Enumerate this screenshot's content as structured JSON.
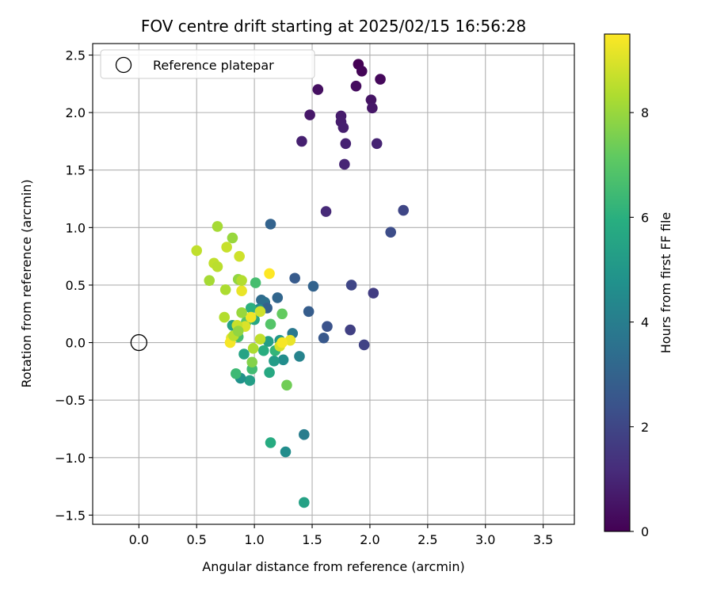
{
  "chart_data": {
    "type": "scatter",
    "title": "FOV centre drift starting at 2025/02/15 16:56:28",
    "xlabel": "Angular distance from reference (arcmin)",
    "ylabel": "Rotation from reference (arcmin)",
    "xlim": [
      -0.4,
      3.77
    ],
    "ylim": [
      -1.58,
      2.6
    ],
    "xticks": [
      0.0,
      0.5,
      1.0,
      1.5,
      2.0,
      2.5,
      3.0,
      3.5
    ],
    "xtick_labels": [
      "0.0",
      "0.5",
      "1.0",
      "1.5",
      "2.0",
      "2.5",
      "3.0",
      "3.5"
    ],
    "yticks": [
      -1.5,
      -1.0,
      -0.5,
      0.0,
      0.5,
      1.0,
      1.5,
      2.0,
      2.5
    ],
    "ytick_labels": [
      "−1.5",
      "−1.0",
      "−0.5",
      "0.0",
      "0.5",
      "1.0",
      "1.5",
      "2.0",
      "2.5"
    ],
    "grid": true,
    "legend": {
      "placement": "top-left",
      "entries": [
        "Reference platepar"
      ]
    },
    "reference_point": {
      "x": 0.0,
      "y": 0.0
    },
    "colorbar": {
      "label": "Hours from first FF file",
      "colormap": "viridis",
      "range": [
        0,
        9.5
      ],
      "ticks": [
        0,
        2,
        4,
        6,
        8
      ],
      "tick_labels": [
        "0",
        "2",
        "4",
        "6",
        "8"
      ]
    },
    "points": [
      {
        "x": 1.9,
        "y": 2.42,
        "c": 0.0
      },
      {
        "x": 1.93,
        "y": 2.36,
        "c": 0.1
      },
      {
        "x": 2.09,
        "y": 2.29,
        "c": 0.2
      },
      {
        "x": 1.88,
        "y": 2.23,
        "c": 0.3
      },
      {
        "x": 1.55,
        "y": 2.2,
        "c": 0.4
      },
      {
        "x": 2.01,
        "y": 2.11,
        "c": 0.5
      },
      {
        "x": 2.02,
        "y": 2.04,
        "c": 0.6
      },
      {
        "x": 1.48,
        "y": 1.98,
        "c": 0.6
      },
      {
        "x": 1.75,
        "y": 1.97,
        "c": 0.7
      },
      {
        "x": 1.75,
        "y": 1.92,
        "c": 0.75
      },
      {
        "x": 1.77,
        "y": 1.87,
        "c": 0.8
      },
      {
        "x": 1.41,
        "y": 1.75,
        "c": 0.85
      },
      {
        "x": 1.79,
        "y": 1.73,
        "c": 0.9
      },
      {
        "x": 2.06,
        "y": 1.73,
        "c": 0.95
      },
      {
        "x": 1.78,
        "y": 1.55,
        "c": 1.0
      },
      {
        "x": 1.62,
        "y": 1.14,
        "c": 1.1
      },
      {
        "x": 2.29,
        "y": 1.15,
        "c": 2.0
      },
      {
        "x": 2.18,
        "y": 0.96,
        "c": 2.2
      },
      {
        "x": 2.03,
        "y": 0.43,
        "c": 1.7
      },
      {
        "x": 1.84,
        "y": 0.5,
        "c": 2.0
      },
      {
        "x": 1.95,
        "y": -0.02,
        "c": 1.9
      },
      {
        "x": 1.83,
        "y": 0.11,
        "c": 1.8
      },
      {
        "x": 1.63,
        "y": 0.14,
        "c": 2.4
      },
      {
        "x": 1.6,
        "y": 0.04,
        "c": 2.6
      },
      {
        "x": 1.47,
        "y": 0.27,
        "c": 2.8
      },
      {
        "x": 1.51,
        "y": 0.49,
        "c": 3.0
      },
      {
        "x": 1.35,
        "y": 0.56,
        "c": 2.7
      },
      {
        "x": 1.14,
        "y": 1.03,
        "c": 3.0
      },
      {
        "x": 1.2,
        "y": 0.39,
        "c": 3.1
      },
      {
        "x": 1.06,
        "y": 0.37,
        "c": 3.3
      },
      {
        "x": 1.09,
        "y": 0.35,
        "c": 3.5
      },
      {
        "x": 1.11,
        "y": 0.3,
        "c": 2.9
      },
      {
        "x": 1.43,
        "y": -0.8,
        "c": 4.0
      },
      {
        "x": 1.27,
        "y": -0.95,
        "c": 4.6
      },
      {
        "x": 1.14,
        "y": -0.87,
        "c": 5.8
      },
      {
        "x": 1.43,
        "y": -1.39,
        "c": 5.4
      },
      {
        "x": 1.39,
        "y": -0.12,
        "c": 4.2
      },
      {
        "x": 1.33,
        "y": 0.08,
        "c": 3.8
      },
      {
        "x": 1.25,
        "y": -0.15,
        "c": 4.6
      },
      {
        "x": 1.22,
        "y": 0.02,
        "c": 5.0
      },
      {
        "x": 1.17,
        "y": -0.16,
        "c": 5.2
      },
      {
        "x": 1.12,
        "y": 0.01,
        "c": 5.3
      },
      {
        "x": 1.08,
        "y": -0.07,
        "c": 5.9
      },
      {
        "x": 1.13,
        "y": -0.26,
        "c": 5.7
      },
      {
        "x": 1.18,
        "y": -0.07,
        "c": 6.2
      },
      {
        "x": 1.28,
        "y": -0.37,
        "c": 7.4
      },
      {
        "x": 1.04,
        "y": 0.29,
        "c": 4.5
      },
      {
        "x": 0.97,
        "y": 0.3,
        "c": 6.0
      },
      {
        "x": 1.01,
        "y": 0.52,
        "c": 6.6
      },
      {
        "x": 1.14,
        "y": 0.16,
        "c": 6.9
      },
      {
        "x": 1.24,
        "y": 0.25,
        "c": 7.2
      },
      {
        "x": 1.0,
        "y": 0.2,
        "c": 5.6
      },
      {
        "x": 0.96,
        "y": -0.33,
        "c": 5.3
      },
      {
        "x": 0.88,
        "y": -0.31,
        "c": 4.8
      },
      {
        "x": 0.84,
        "y": -0.27,
        "c": 6.4
      },
      {
        "x": 0.91,
        "y": -0.1,
        "c": 5.5
      },
      {
        "x": 0.98,
        "y": -0.23,
        "c": 6.5
      },
      {
        "x": 0.98,
        "y": -0.17,
        "c": 7.7
      },
      {
        "x": 0.81,
        "y": 0.15,
        "c": 5.4
      },
      {
        "x": 0.86,
        "y": 0.05,
        "c": 6.6
      },
      {
        "x": 0.93,
        "y": 0.18,
        "c": 6.9
      },
      {
        "x": 0.99,
        "y": -0.05,
        "c": 8.3
      },
      {
        "x": 1.05,
        "y": 0.03,
        "c": 8.6
      },
      {
        "x": 1.22,
        "y": -0.03,
        "c": 8.9
      },
      {
        "x": 1.31,
        "y": 0.02,
        "c": 9.2
      },
      {
        "x": 1.24,
        "y": 0.0,
        "c": 9.4
      },
      {
        "x": 1.05,
        "y": 0.27,
        "c": 8.8
      },
      {
        "x": 0.97,
        "y": 0.22,
        "c": 9.3
      },
      {
        "x": 0.92,
        "y": 0.14,
        "c": 9.0
      },
      {
        "x": 0.85,
        "y": 0.15,
        "c": 8.7
      },
      {
        "x": 0.8,
        "y": 0.04,
        "c": 9.1
      },
      {
        "x": 0.79,
        "y": 0.0,
        "c": 9.4
      },
      {
        "x": 0.82,
        "y": 0.06,
        "c": 8.5
      },
      {
        "x": 0.89,
        "y": 0.26,
        "c": 8.0
      },
      {
        "x": 0.74,
        "y": 0.22,
        "c": 8.4
      },
      {
        "x": 0.86,
        "y": 0.1,
        "c": 7.9
      },
      {
        "x": 0.89,
        "y": 0.45,
        "c": 9.2
      },
      {
        "x": 0.75,
        "y": 0.46,
        "c": 8.3
      },
      {
        "x": 0.86,
        "y": 0.55,
        "c": 7.9
      },
      {
        "x": 0.89,
        "y": 0.54,
        "c": 8.4
      },
      {
        "x": 1.13,
        "y": 0.6,
        "c": 9.5
      },
      {
        "x": 0.61,
        "y": 0.54,
        "c": 8.2
      },
      {
        "x": 0.65,
        "y": 0.69,
        "c": 8.6
      },
      {
        "x": 0.68,
        "y": 0.66,
        "c": 8.5
      },
      {
        "x": 0.5,
        "y": 0.8,
        "c": 8.6
      },
      {
        "x": 0.76,
        "y": 0.83,
        "c": 8.7
      },
      {
        "x": 0.87,
        "y": 0.75,
        "c": 8.8
      },
      {
        "x": 0.81,
        "y": 0.91,
        "c": 8.0
      },
      {
        "x": 0.68,
        "y": 1.01,
        "c": 8.2
      }
    ]
  }
}
